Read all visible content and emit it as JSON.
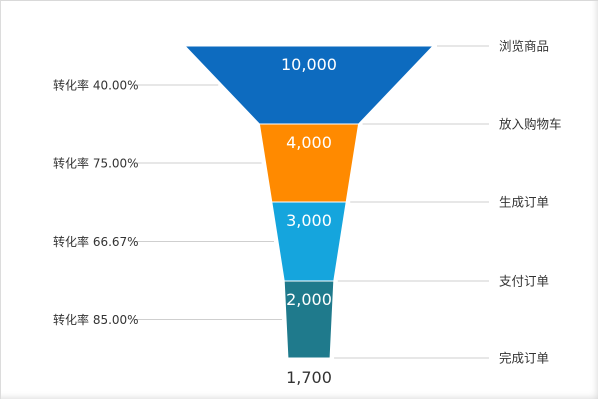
{
  "chart_data": {
    "type": "funnel",
    "stages": [
      {
        "name": "浏览商品",
        "value": 10000,
        "value_label": "10,000",
        "color": "#0D6BBF"
      },
      {
        "name": "放入购物车",
        "value": 4000,
        "value_label": "4,000",
        "color": "#FF8A00"
      },
      {
        "name": "生成订单",
        "value": 3000,
        "value_label": "3,000",
        "color": "#15A5DD"
      },
      {
        "name": "支付订单",
        "value": 2000,
        "value_label": "2,000",
        "color": "#1F7A8C"
      },
      {
        "name": "完成订单",
        "value": 1700,
        "value_label": "1,700"
      }
    ],
    "conversion_rates": [
      "转化率 40.00%",
      "转化率 75.00%",
      "转化率 66.67%",
      "转化率 85.00%"
    ]
  }
}
